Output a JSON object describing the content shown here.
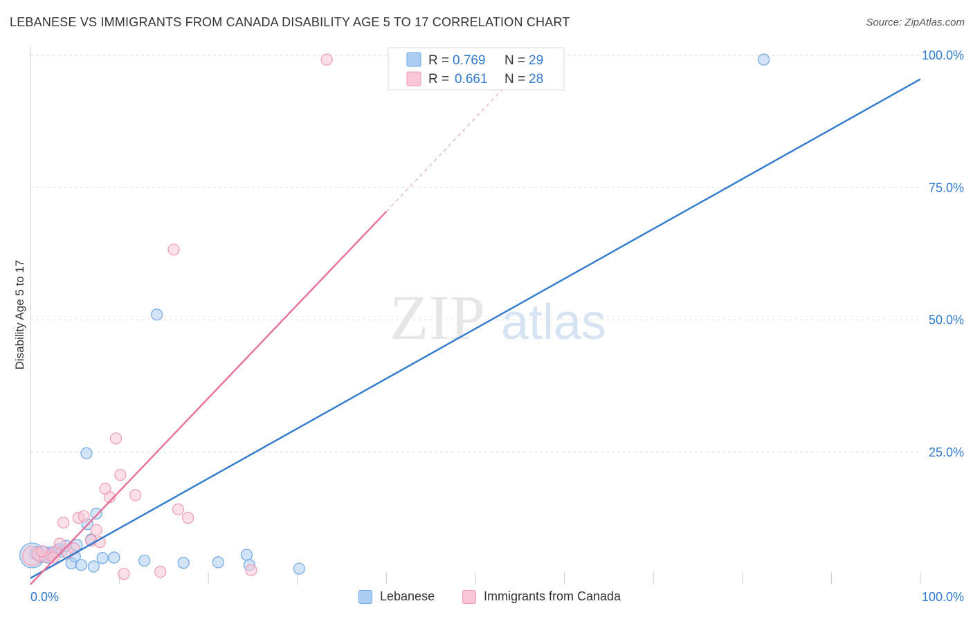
{
  "header": {
    "title": "LEBANESE VS IMMIGRANTS FROM CANADA DISABILITY AGE 5 TO 17 CORRELATION CHART",
    "source": "Source: ZipAtlas.com"
  },
  "watermark": {
    "zip": "ZIP",
    "atlas": "atlas"
  },
  "chart_data": {
    "type": "scatter",
    "title": "LEBANESE VS IMMIGRANTS FROM CANADA DISABILITY AGE 5 TO 17 CORRELATION CHART",
    "xlabel": "",
    "ylabel": "Disability Age 5 to 17",
    "xlim": [
      0,
      100
    ],
    "ylim": [
      0,
      100
    ],
    "x_tick_labels": [
      "0.0%",
      "100.0%"
    ],
    "y_ticks": [
      25,
      50,
      75,
      100
    ],
    "y_tick_labels": [
      "25.0%",
      "50.0%",
      "75.0%",
      "100.0%"
    ],
    "legend_stats": {
      "r_label": "R =",
      "n_label": "N =",
      "entries": [
        {
          "r": "0.769",
          "n": "29"
        },
        {
          "r": "0.661",
          "n": "28"
        }
      ]
    },
    "series": [
      {
        "name": "Lebanese",
        "color": "#6fa8e6",
        "fill": "#aecdf2",
        "line_color": "#2f79cf",
        "trend": {
          "x": [
            0,
            100
          ],
          "y": [
            1.2,
            95.5
          ]
        },
        "points": [
          {
            "x": 0.2,
            "y": 5.5,
            "s": 18
          },
          {
            "x": 0.8,
            "y": 5.9,
            "s": 10
          },
          {
            "x": 1.2,
            "y": 5.3,
            "s": 9
          },
          {
            "x": 1.6,
            "y": 6.0,
            "s": 9
          },
          {
            "x": 2.0,
            "y": 5.2,
            "s": 9
          },
          {
            "x": 2.4,
            "y": 6.1,
            "s": 8
          },
          {
            "x": 3.0,
            "y": 6.4,
            "s": 8
          },
          {
            "x": 3.5,
            "y": 6.2,
            "s": 8
          },
          {
            "x": 4.0,
            "y": 7.3,
            "s": 8
          },
          {
            "x": 4.6,
            "y": 4.0,
            "s": 8
          },
          {
            "x": 5.0,
            "y": 5.3,
            "s": 8
          },
          {
            "x": 5.2,
            "y": 7.5,
            "s": 8
          },
          {
            "x": 5.7,
            "y": 3.7,
            "s": 8
          },
          {
            "x": 6.3,
            "y": 24.8,
            "s": 8
          },
          {
            "x": 6.4,
            "y": 11.4,
            "s": 8
          },
          {
            "x": 6.8,
            "y": 8.5,
            "s": 8
          },
          {
            "x": 7.1,
            "y": 3.4,
            "s": 8
          },
          {
            "x": 7.4,
            "y": 13.4,
            "s": 8
          },
          {
            "x": 8.1,
            "y": 5.0,
            "s": 8
          },
          {
            "x": 9.4,
            "y": 5.1,
            "s": 8
          },
          {
            "x": 12.8,
            "y": 4.5,
            "s": 8
          },
          {
            "x": 14.2,
            "y": 51.0,
            "s": 8
          },
          {
            "x": 17.2,
            "y": 4.1,
            "s": 8
          },
          {
            "x": 21.1,
            "y": 4.2,
            "s": 8
          },
          {
            "x": 24.3,
            "y": 5.6,
            "s": 8
          },
          {
            "x": 24.6,
            "y": 3.7,
            "s": 8
          },
          {
            "x": 30.2,
            "y": 3.0,
            "s": 8
          },
          {
            "x": 82.4,
            "y": 99.2,
            "s": 8
          },
          {
            "x": 3.2,
            "y": 6.7,
            "s": 8
          }
        ]
      },
      {
        "name": "Immigrants from Canada",
        "color": "#f19bb7",
        "fill": "#f8c6d6",
        "line_color": "#e8709a",
        "trend": {
          "x": [
            0,
            40
          ],
          "y": [
            0,
            70.5
          ]
        },
        "trend_dashed": {
          "x": [
            40,
            53
          ],
          "y": [
            70.5,
            93.5
          ]
        },
        "points": [
          {
            "x": 0.2,
            "y": 5.4,
            "s": 14
          },
          {
            "x": 0.9,
            "y": 5.7,
            "s": 9
          },
          {
            "x": 1.6,
            "y": 5.2,
            "s": 8
          },
          {
            "x": 2.2,
            "y": 5.6,
            "s": 8
          },
          {
            "x": 2.8,
            "y": 6.2,
            "s": 8
          },
          {
            "x": 3.3,
            "y": 7.7,
            "s": 8
          },
          {
            "x": 3.7,
            "y": 11.7,
            "s": 8
          },
          {
            "x": 4.2,
            "y": 6.0,
            "s": 8
          },
          {
            "x": 4.9,
            "y": 6.8,
            "s": 8
          },
          {
            "x": 5.4,
            "y": 12.6,
            "s": 8
          },
          {
            "x": 6.0,
            "y": 12.9,
            "s": 8
          },
          {
            "x": 6.8,
            "y": 8.3,
            "s": 8
          },
          {
            "x": 7.4,
            "y": 10.3,
            "s": 8
          },
          {
            "x": 7.8,
            "y": 8.0,
            "s": 8
          },
          {
            "x": 8.4,
            "y": 18.1,
            "s": 8
          },
          {
            "x": 8.9,
            "y": 16.5,
            "s": 8
          },
          {
            "x": 9.6,
            "y": 27.6,
            "s": 8
          },
          {
            "x": 10.1,
            "y": 20.7,
            "s": 8
          },
          {
            "x": 10.5,
            "y": 2.0,
            "s": 8
          },
          {
            "x": 11.8,
            "y": 16.9,
            "s": 8
          },
          {
            "x": 14.6,
            "y": 2.4,
            "s": 8
          },
          {
            "x": 16.1,
            "y": 63.3,
            "s": 8
          },
          {
            "x": 16.6,
            "y": 14.2,
            "s": 8
          },
          {
            "x": 17.7,
            "y": 12.6,
            "s": 8
          },
          {
            "x": 24.8,
            "y": 2.7,
            "s": 8
          },
          {
            "x": 33.3,
            "y": 99.2,
            "s": 8
          },
          {
            "x": 1.3,
            "y": 6.3,
            "s": 8
          },
          {
            "x": 2.6,
            "y": 5.1,
            "s": 8
          }
        ]
      }
    ]
  }
}
